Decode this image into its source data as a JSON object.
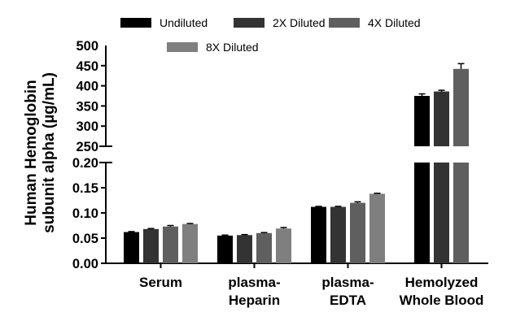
{
  "chart_data": {
    "type": "bar",
    "ylabel_lines": [
      "Human Hemoglobin",
      "subunit alpha (µg/mL)"
    ],
    "categories": [
      [
        "Serum"
      ],
      [
        "plasma-",
        "Heparin"
      ],
      [
        "plasma-",
        "EDTA"
      ],
      [
        "Hemolyzed",
        "Whole Blood"
      ]
    ],
    "series": [
      {
        "name": "Undiluted",
        "color": "#000000",
        "values": [
          0.062,
          0.055,
          0.112,
          375
        ],
        "errors": [
          0.001,
          0.001,
          0.001,
          5
        ]
      },
      {
        "name": "2X Diluted",
        "color": "#333333",
        "values": [
          0.068,
          0.056,
          0.112,
          386
        ],
        "errors": [
          0.001,
          0.001,
          0.001,
          3
        ]
      },
      {
        "name": "4X Diluted",
        "color": "#5f5f5f",
        "values": [
          0.073,
          0.06,
          0.12,
          442
        ],
        "errors": [
          0.002,
          0.001,
          0.002,
          13
        ]
      },
      {
        "name": "8X Diluted",
        "color": "#7f7f7f",
        "values": [
          0.078,
          0.069,
          0.138,
          null
        ],
        "errors": [
          0.001,
          0.002,
          0.001,
          null
        ]
      }
    ],
    "y_axis_segments": [
      {
        "range": [
          0,
          0.2
        ],
        "ticks": [
          "0.00",
          "0.05",
          "0.10",
          "0.15",
          "0.20"
        ]
      },
      {
        "range": [
          250,
          500
        ],
        "ticks": [
          "250",
          "300",
          "350",
          "400",
          "450",
          "500"
        ]
      }
    ],
    "axis_break": true,
    "legend_position": "top"
  }
}
